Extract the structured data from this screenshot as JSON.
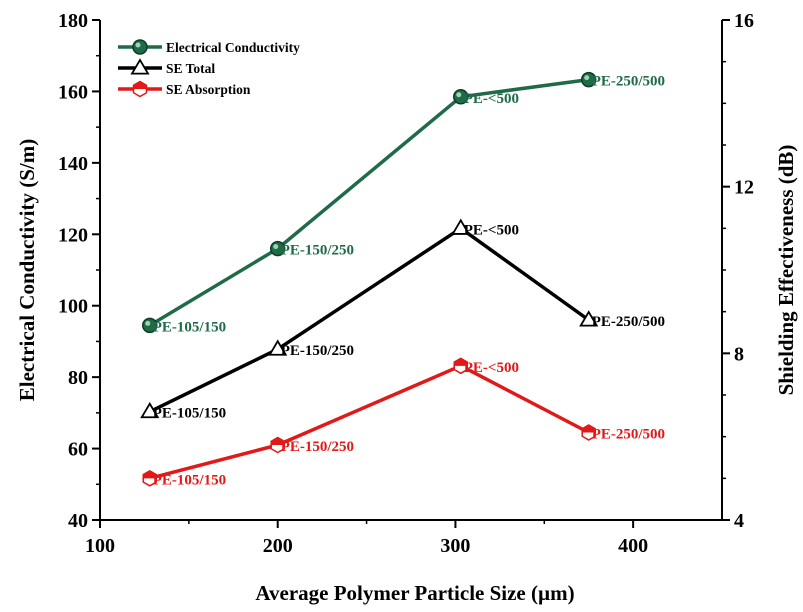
{
  "chart_data": {
    "type": "line",
    "xlabel": "Average Polymer Particle Size (µm)",
    "ylabel": "Electrical Conductivity (S/m)",
    "y2label": "Shielding Effectiveness (dB)",
    "xlim": [
      100,
      450
    ],
    "ylim": [
      40,
      180
    ],
    "y2lim": [
      4,
      16
    ],
    "x_ticks": [
      "100",
      "200",
      "300",
      "400"
    ],
    "y_ticks": [
      "40",
      "60",
      "80",
      "100",
      "120",
      "140",
      "160",
      "180"
    ],
    "y2_ticks": [
      "4",
      "8",
      "12",
      "16"
    ],
    "grid": false,
    "legend_position": "top-left",
    "series": [
      {
        "name": "Electrical Conductivity",
        "axis": "left",
        "color": "#1f6b48",
        "marker": "circle",
        "label_color": "#1f6b48",
        "points": [
          {
            "x": 128,
            "y": 94.5,
            "label": "PE-105/150"
          },
          {
            "x": 200,
            "y": 116,
            "label": "PE-150/250"
          },
          {
            "x": 303,
            "y": 158.5,
            "label": "PE-<500"
          },
          {
            "x": 375,
            "y": 163.3,
            "label": "PE-250/500"
          }
        ]
      },
      {
        "name": "SE Total",
        "axis": "right",
        "color": "#000000",
        "marker": "triangle",
        "label_color": "#000000",
        "points": [
          {
            "x": 128,
            "y": 6.6,
            "label": "PE-105/150"
          },
          {
            "x": 200,
            "y": 8.1,
            "label": "PE-150/250"
          },
          {
            "x": 303,
            "y": 11.0,
            "label": "PE-<500"
          },
          {
            "x": 375,
            "y": 8.8,
            "label": "PE-250/500"
          }
        ]
      },
      {
        "name": "SE Absorption",
        "axis": "right",
        "color": "#e11919",
        "marker": "hexagon",
        "label_color": "#e11919",
        "points": [
          {
            "x": 128,
            "y": 5.0,
            "label": "PE-105/150"
          },
          {
            "x": 200,
            "y": 5.8,
            "label": "PE-150/250"
          },
          {
            "x": 303,
            "y": 7.7,
            "label": "PE-<500"
          },
          {
            "x": 375,
            "y": 6.1,
            "label": "PE-250/500"
          }
        ]
      }
    ]
  }
}
